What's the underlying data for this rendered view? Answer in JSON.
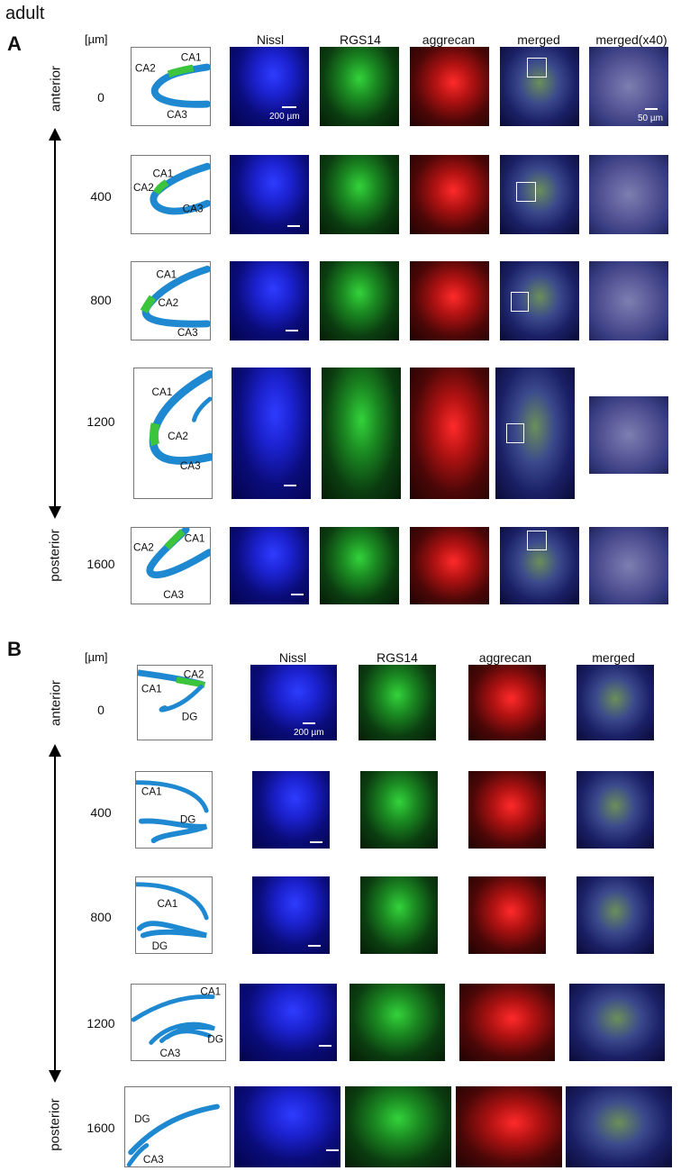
{
  "figure_title": "adult",
  "panel_a": {
    "letter": "A",
    "unit": "[µm]",
    "column_headers": [
      "Nissl",
      "RGS14",
      "aggrecan",
      "merged",
      "merged(x40)"
    ],
    "axis_top_label": "anterior",
    "axis_bottom_label": "posterior",
    "rows": [
      {
        "depth": "0",
        "labels": [
          "CA1",
          "CA2",
          "CA3"
        ]
      },
      {
        "depth": "400",
        "labels": [
          "CA1",
          "CA2",
          "CA3"
        ]
      },
      {
        "depth": "800",
        "labels": [
          "CA1",
          "CA2",
          "CA3"
        ]
      },
      {
        "depth": "1200",
        "labels": [
          "CA1",
          "CA2",
          "CA3"
        ]
      },
      {
        "depth": "1600",
        "labels": [
          "CA1",
          "CA2",
          "CA3"
        ]
      }
    ],
    "scale_nissl": "200 µm",
    "scale_x40": "50 µm"
  },
  "panel_b": {
    "letter": "B",
    "unit": "[µm]",
    "column_headers": [
      "Nissl",
      "RGS14",
      "aggrecan",
      "merged"
    ],
    "axis_top_label": "anterior",
    "axis_bottom_label": "posterior",
    "rows": [
      {
        "depth": "0",
        "labels": [
          "CA1",
          "CA2",
          "DG"
        ]
      },
      {
        "depth": "400",
        "labels": [
          "CA1",
          "DG"
        ]
      },
      {
        "depth": "800",
        "labels": [
          "CA1",
          "DG"
        ]
      },
      {
        "depth": "1200",
        "labels": [
          "CA1",
          "DG",
          "CA3"
        ]
      },
      {
        "depth": "1600",
        "labels": [
          "DG",
          "CA3"
        ]
      }
    ],
    "scale_nissl": "200 µm"
  },
  "colors": {
    "schematic_blue": "#1e88d0",
    "schematic_green": "#3cc43c",
    "nissl": "#1f2ee0",
    "rgs14": "#2ba63a",
    "aggrecan": "#c41818"
  }
}
